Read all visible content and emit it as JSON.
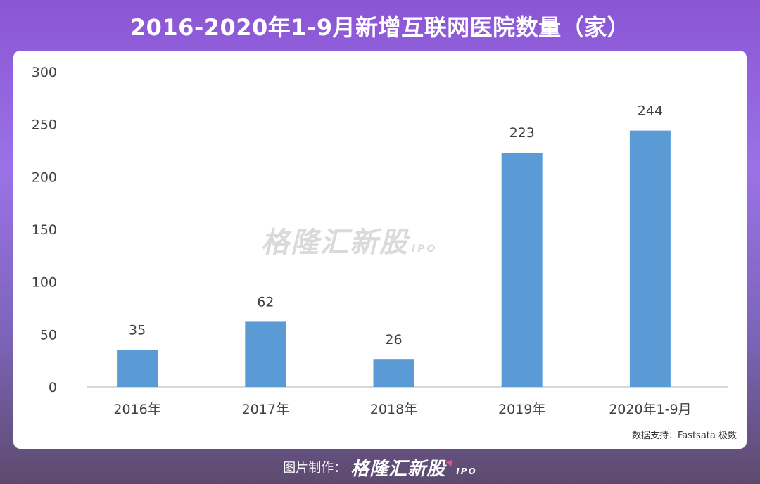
{
  "title": "2016-2020年1-9月新增互联网医院数量（家）",
  "source": "数据支持：Fastsata 极数",
  "watermark": {
    "text": "格隆汇新股",
    "sub": "IPO"
  },
  "footer": {
    "label": "图片制作：",
    "brand": "格隆汇新股",
    "brand_sub": "IPO"
  },
  "colors": {
    "bar": "#5b9bd5",
    "axis": "#d9d9d9",
    "label": "#404040",
    "brand_arrow": "#e8508a"
  },
  "chart_data": {
    "type": "bar",
    "title": "2016-2020年1-9月新增互联网医院数量（家）",
    "categories": [
      "2016年",
      "2017年",
      "2018年",
      "2019年",
      "2020年1-9月"
    ],
    "values": [
      35,
      62,
      26,
      223,
      244
    ],
    "data_labels": [
      "35",
      "62",
      "26",
      "223",
      "244"
    ],
    "ylim": [
      0,
      300
    ],
    "yticks": [
      0,
      50,
      100,
      150,
      200,
      250,
      300
    ],
    "ytick_labels": [
      "0",
      "50",
      "100",
      "150",
      "200",
      "250",
      "300"
    ],
    "grid": false,
    "legend": "none"
  }
}
